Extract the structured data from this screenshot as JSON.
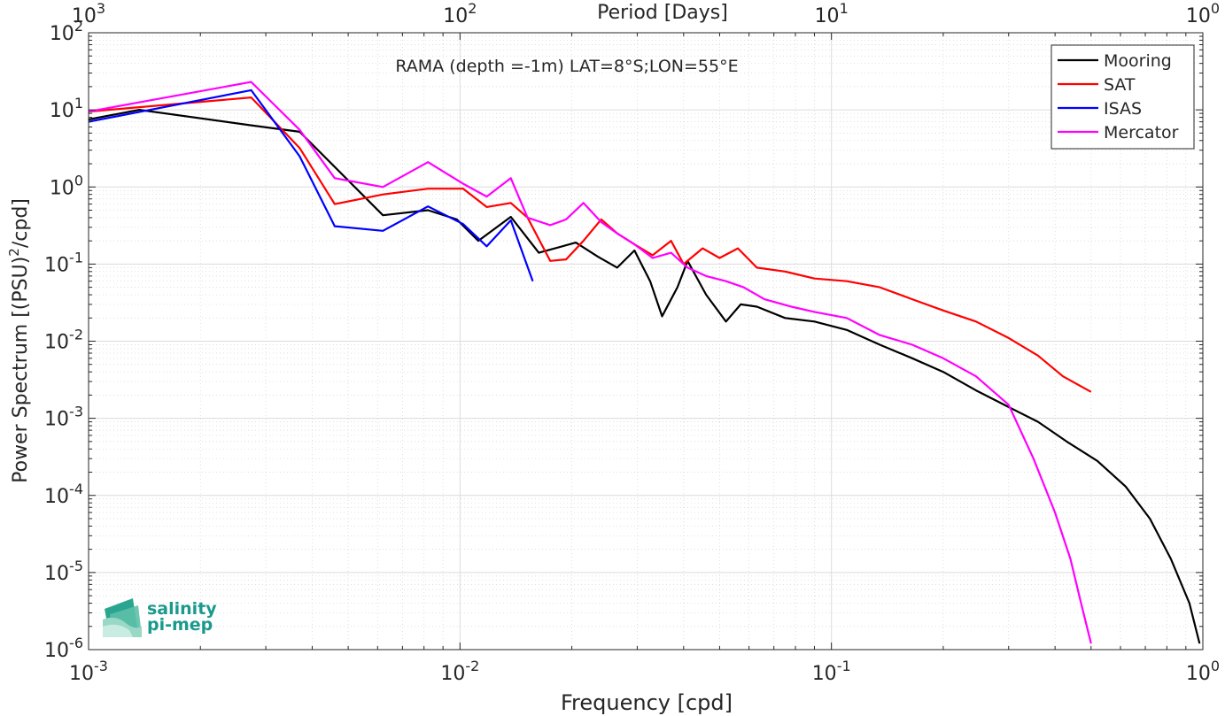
{
  "chart_data": {
    "type": "line",
    "title": "",
    "annotation": "RAMA (depth =-1m) LAT=8°S;LON=55°E",
    "xlabel": "Frequency [cpd]",
    "ylabel": "Power Spectrum [(PSU)²/cpd]",
    "x2label": "Period [Days]",
    "xscale": "log",
    "yscale": "log",
    "xlim": [
      0.001,
      1
    ],
    "ylim": [
      1e-06,
      100
    ],
    "grid": true,
    "legend_position": "top-right",
    "x_ticks": [
      {
        "b": "10",
        "e": "-3"
      },
      {
        "b": "10",
        "e": "-2"
      },
      {
        "b": "10",
        "e": "-1"
      },
      {
        "b": "10",
        "e": "0"
      }
    ],
    "x2_ticks": [
      {
        "b": "10",
        "e": "3"
      },
      {
        "b": "10",
        "e": "2"
      },
      {
        "b": "10",
        "e": "1"
      },
      {
        "b": "10",
        "e": "0"
      }
    ],
    "y_ticks": [
      {
        "b": "10",
        "e": "2"
      },
      {
        "b": "10",
        "e": "1"
      },
      {
        "b": "10",
        "e": "0"
      },
      {
        "b": "10",
        "e": "-1"
      },
      {
        "b": "10",
        "e": "-2"
      },
      {
        "b": "10",
        "e": "-3"
      },
      {
        "b": "10",
        "e": "-4"
      },
      {
        "b": "10",
        "e": "-5"
      },
      {
        "b": "10",
        "e": "-6"
      }
    ],
    "series": [
      {
        "name": "Mooring",
        "color": "#000000",
        "x": [
          0.001,
          0.00137,
          0.00274,
          0.0037,
          0.0062,
          0.0082,
          0.0098,
          0.0112,
          0.0137,
          0.0163,
          0.0205,
          0.0235,
          0.0265,
          0.0295,
          0.0325,
          0.035,
          0.0385,
          0.041,
          0.046,
          0.052,
          0.057,
          0.063,
          0.075,
          0.09,
          0.11,
          0.135,
          0.165,
          0.2,
          0.245,
          0.3,
          0.36,
          0.43,
          0.52,
          0.62,
          0.72,
          0.82,
          0.92,
          0.98
        ],
        "y": [
          7.5,
          10,
          6.3,
          5.2,
          0.43,
          0.5,
          0.38,
          0.2,
          0.41,
          0.14,
          0.19,
          0.125,
          0.09,
          0.15,
          0.06,
          0.021,
          0.05,
          0.11,
          0.04,
          0.018,
          0.03,
          0.028,
          0.02,
          0.018,
          0.014,
          0.009,
          0.006,
          0.004,
          0.0023,
          0.0014,
          0.0009,
          0.0005,
          0.00028,
          0.00013,
          5e-05,
          1.5e-05,
          4e-06,
          1.2e-06
        ]
      },
      {
        "name": "SAT",
        "color": "#ff0000",
        "x": [
          0.001,
          0.00274,
          0.0037,
          0.0046,
          0.0062,
          0.0082,
          0.0102,
          0.0118,
          0.0137,
          0.0152,
          0.0175,
          0.0193,
          0.0215,
          0.024,
          0.0265,
          0.0295,
          0.033,
          0.037,
          0.04,
          0.045,
          0.05,
          0.056,
          0.063,
          0.075,
          0.09,
          0.11,
          0.135,
          0.165,
          0.2,
          0.245,
          0.3,
          0.36,
          0.42,
          0.5
        ],
        "y": [
          9.5,
          14.5,
          3.2,
          0.6,
          0.8,
          0.95,
          0.95,
          0.55,
          0.62,
          0.4,
          0.11,
          0.115,
          0.2,
          0.38,
          0.25,
          0.18,
          0.13,
          0.2,
          0.1,
          0.16,
          0.12,
          0.16,
          0.09,
          0.08,
          0.065,
          0.06,
          0.05,
          0.035,
          0.025,
          0.018,
          0.011,
          0.0065,
          0.0035,
          0.0022
        ]
      },
      {
        "name": "ISAS",
        "color": "#0000ff",
        "x": [
          0.001,
          0.00274,
          0.0037,
          0.0046,
          0.0062,
          0.0082,
          0.0102,
          0.0118,
          0.0137,
          0.0157
        ],
        "y": [
          7,
          18,
          2.5,
          0.31,
          0.27,
          0.56,
          0.33,
          0.17,
          0.37,
          0.06
        ]
      },
      {
        "name": "Mercator",
        "color": "#ff00ff",
        "x": [
          0.001,
          0.00274,
          0.0037,
          0.0046,
          0.0062,
          0.0082,
          0.0102,
          0.0118,
          0.0137,
          0.0152,
          0.0175,
          0.0193,
          0.0215,
          0.024,
          0.0265,
          0.0295,
          0.033,
          0.037,
          0.041,
          0.046,
          0.052,
          0.058,
          0.066,
          0.078,
          0.09,
          0.11,
          0.135,
          0.165,
          0.2,
          0.245,
          0.3,
          0.35,
          0.4,
          0.44,
          0.47,
          0.5
        ],
        "y": [
          9.5,
          23,
          5.5,
          1.3,
          1.0,
          2.1,
          1.1,
          0.75,
          1.3,
          0.4,
          0.32,
          0.38,
          0.62,
          0.35,
          0.25,
          0.18,
          0.12,
          0.14,
          0.09,
          0.07,
          0.06,
          0.05,
          0.035,
          0.028,
          0.024,
          0.02,
          0.012,
          0.009,
          0.006,
          0.0035,
          0.0015,
          0.0003,
          6e-05,
          1.5e-05,
          4e-06,
          1.2e-06
        ]
      }
    ]
  },
  "logo": {
    "line1": "salinity",
    "line2": "pi-mep",
    "color": "#1a9a8c"
  }
}
